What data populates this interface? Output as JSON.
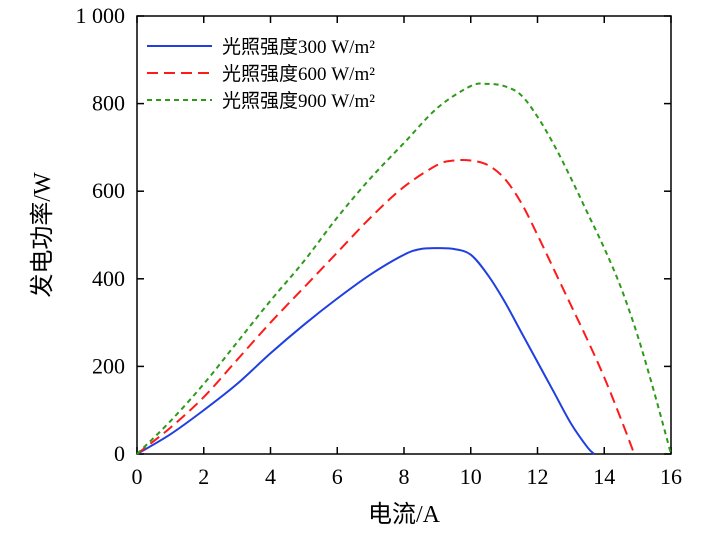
{
  "chart_data": {
    "type": "line",
    "xlabel": "电流/A",
    "ylabel": "发电功率/W",
    "xlim": [
      0,
      16
    ],
    "ylim": [
      0,
      1000
    ],
    "xticks": [
      0,
      2,
      4,
      6,
      8,
      10,
      12,
      14,
      16
    ],
    "yticks": [
      0,
      200,
      400,
      600,
      800,
      1000
    ],
    "xtick_labels": [
      "0",
      "2",
      "4",
      "6",
      "8",
      "10",
      "12",
      "14",
      "16"
    ],
    "ytick_labels": [
      "0",
      "200",
      "400",
      "600",
      "800",
      "1 000"
    ],
    "legend_position": "top-left",
    "series": [
      {
        "name": "光照强度300 W/m²",
        "color": "#1f3fe0",
        "dash": "solid",
        "x": [
          0,
          1,
          2,
          3,
          4,
          5,
          6,
          7,
          8,
          8.5,
          9,
          9.5,
          10,
          10.5,
          11,
          11.5,
          12,
          12.5,
          13,
          13.5,
          13.7
        ],
        "y": [
          0,
          45,
          100,
          160,
          230,
          295,
          355,
          410,
          455,
          468,
          470,
          468,
          455,
          410,
          350,
          280,
          210,
          140,
          70,
          15,
          0
        ]
      },
      {
        "name": "光照强度600 W/m²",
        "color": "#ff1a1a",
        "dash": "dashed",
        "x": [
          0,
          1,
          2,
          3,
          4,
          5,
          6,
          7,
          8,
          9,
          9.5,
          10,
          10.5,
          11,
          11.5,
          12,
          12.5,
          13,
          13.5,
          14,
          14.5,
          14.9
        ],
        "y": [
          0,
          60,
          130,
          215,
          300,
          380,
          460,
          540,
          610,
          660,
          670,
          670,
          660,
          630,
          575,
          500,
          420,
          340,
          260,
          175,
          80,
          0
        ]
      },
      {
        "name": "光照强度900 W/m²",
        "color": "#2d9a1a",
        "dash": "dotted",
        "x": [
          0,
          1,
          2,
          3,
          4,
          5,
          6,
          7,
          8,
          9,
          10,
          10.5,
          11,
          11.5,
          12,
          12.5,
          13,
          13.5,
          14,
          14.5,
          15,
          15.5,
          16
        ],
        "y": [
          0,
          75,
          160,
          255,
          350,
          440,
          540,
          630,
          710,
          790,
          840,
          845,
          840,
          820,
          770,
          705,
          630,
          550,
          470,
          380,
          270,
          140,
          0
        ]
      }
    ]
  }
}
